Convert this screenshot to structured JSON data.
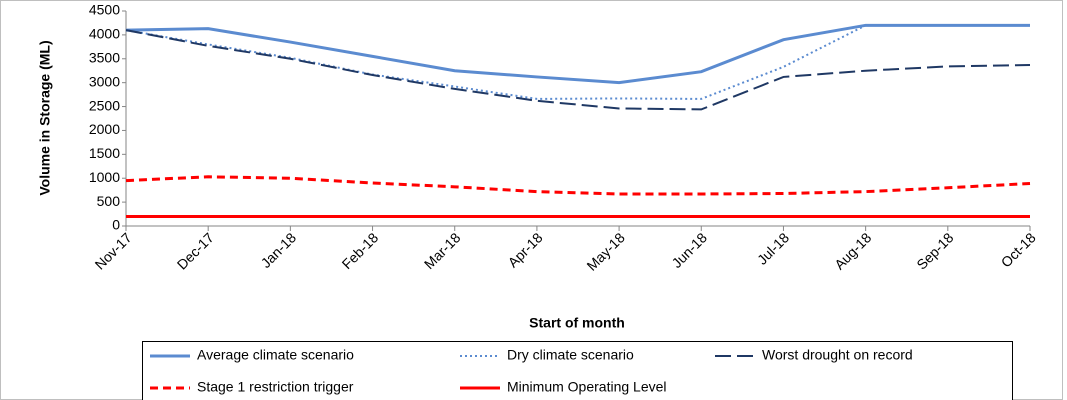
{
  "chart_data": {
    "type": "line",
    "x_label": "Start of month",
    "y_label": "Volume in Storage (ML)",
    "categories": [
      "Nov-17",
      "Dec-17",
      "Jan-18",
      "Feb-18",
      "Mar-18",
      "Apr-18",
      "May-18",
      "Jun-18",
      "Jul-18",
      "Aug-18",
      "Sep-18",
      "Oct-18"
    ],
    "series": [
      {
        "name": "Average climate scenario",
        "color": "#5b8bd0",
        "width": 3,
        "dash": "solid",
        "values": [
          4100,
          4130,
          3850,
          3550,
          3250,
          3120,
          3000,
          3230,
          3900,
          4200,
          4200,
          4200
        ]
      },
      {
        "name": "Dry climate scenario",
        "color": "#5b8bd0",
        "width": 2,
        "dash": "dotted",
        "values": [
          4100,
          3800,
          3520,
          3170,
          2920,
          2660,
          2670,
          2660,
          3330,
          4200,
          4200,
          4200
        ]
      },
      {
        "name": "Worst drought on record",
        "color": "#1f3864",
        "width": 2,
        "dash": "long-dash",
        "values": [
          4100,
          3770,
          3500,
          3160,
          2870,
          2620,
          2460,
          2440,
          3120,
          3250,
          3340,
          3370
        ]
      },
      {
        "name": "Stage 1 restriction trigger",
        "color": "#ff0000",
        "width": 3,
        "dash": "dashed",
        "values": [
          950,
          1030,
          1000,
          900,
          820,
          720,
          670,
          670,
          680,
          720,
          800,
          890
        ]
      },
      {
        "name": "Minimum Operating Level",
        "color": "#ff0000",
        "width": 3,
        "dash": "solid",
        "values": [
          200,
          200,
          200,
          200,
          200,
          200,
          200,
          200,
          200,
          200,
          200,
          200
        ]
      }
    ],
    "ylim": [
      0,
      4500
    ],
    "yticks": [
      0,
      500,
      1000,
      1500,
      2000,
      2500,
      3000,
      3500,
      4000,
      4500
    ],
    "grid": false
  }
}
